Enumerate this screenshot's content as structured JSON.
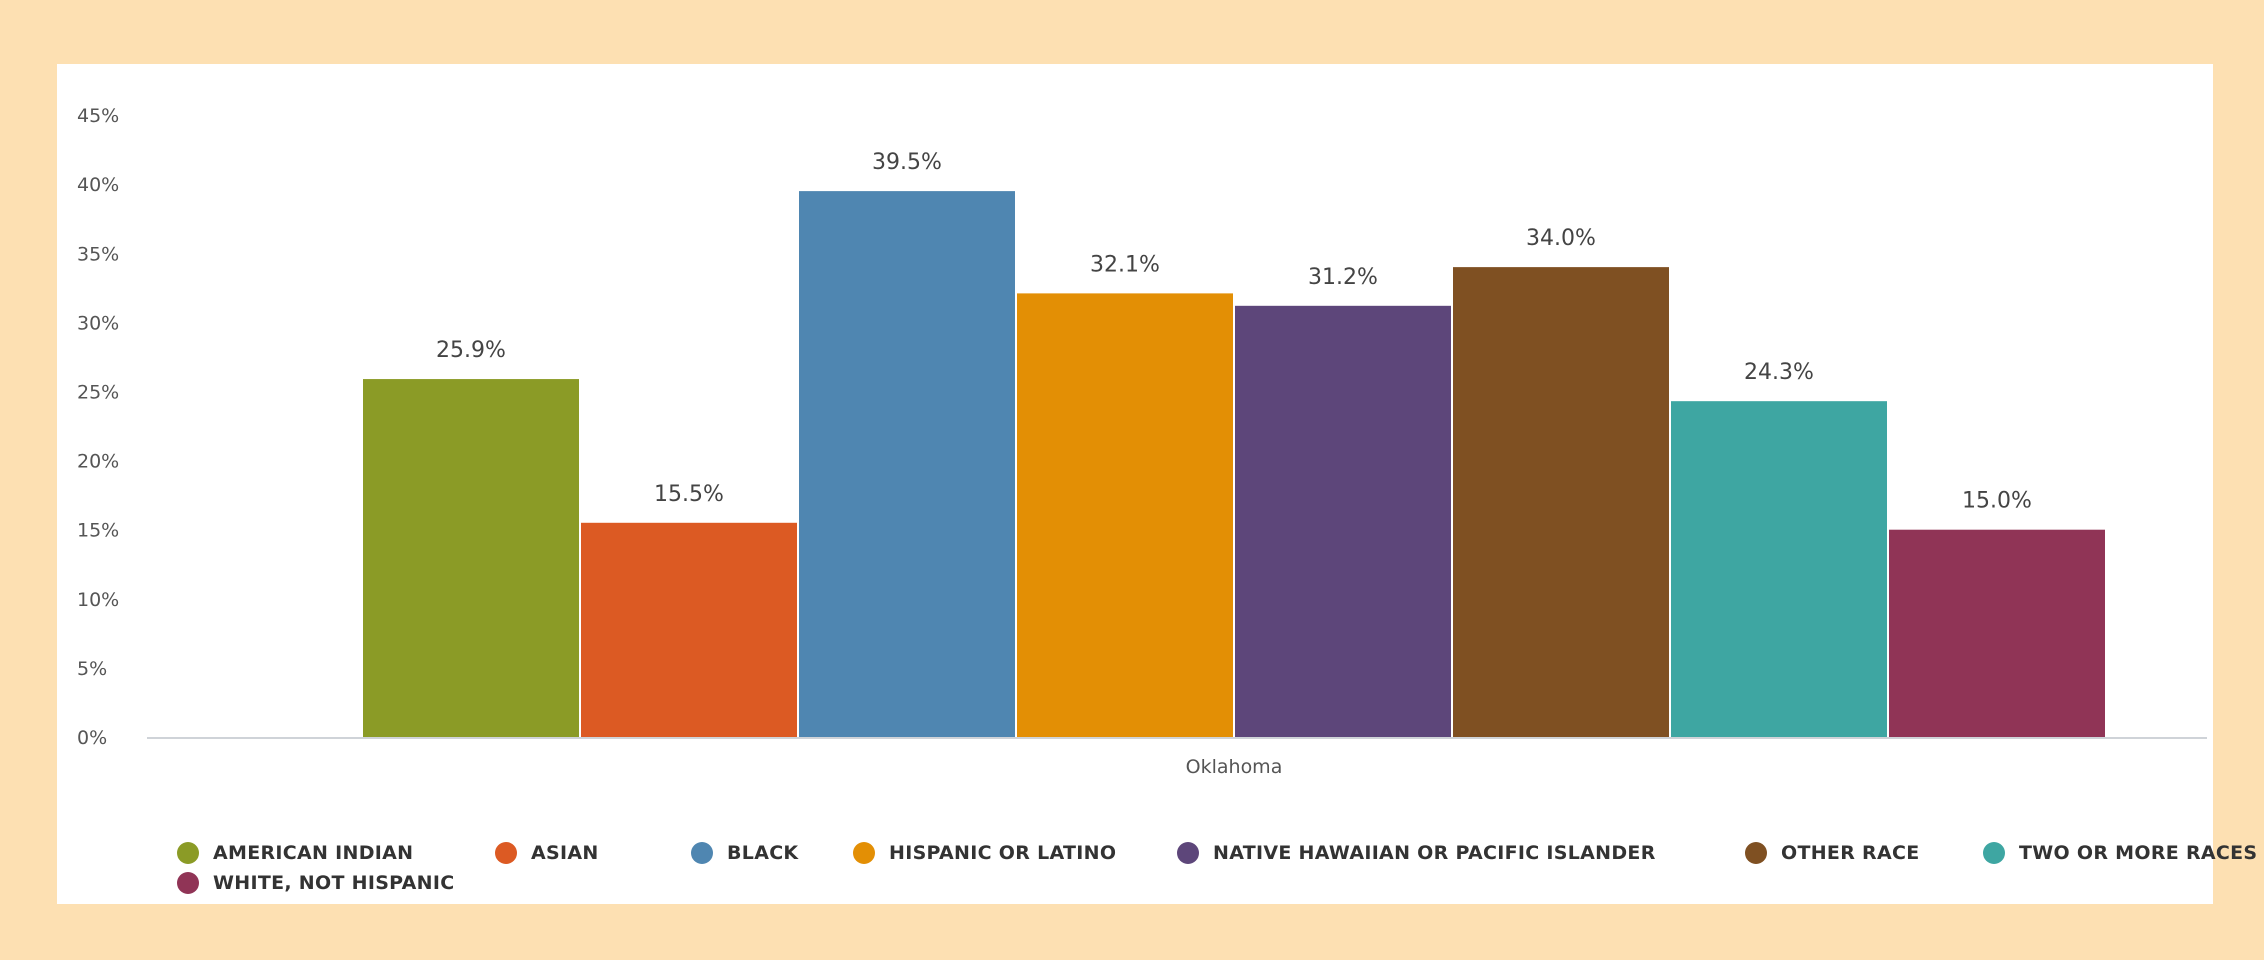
{
  "chart_data": {
    "type": "bar",
    "categories": [
      "Oklahoma"
    ],
    "series": [
      {
        "name": "AMERICAN INDIAN",
        "values": [
          25.9
        ],
        "label": "25.9%",
        "color": "#8b9b26"
      },
      {
        "name": "ASIAN",
        "values": [
          15.5
        ],
        "label": "15.5%",
        "color": "#dc5a23"
      },
      {
        "name": "BLACK",
        "values": [
          39.5
        ],
        "label": "39.5%",
        "color": "#4f86b1"
      },
      {
        "name": "HISPANIC OR LATINO",
        "values": [
          32.1
        ],
        "label": "32.1%",
        "color": "#e38f05"
      },
      {
        "name": "NATIVE HAWAIIAN OR PACIFIC ISLANDER",
        "values": [
          31.2
        ],
        "label": "31.2%",
        "color": "#5d467a"
      },
      {
        "name": "OTHER RACE",
        "values": [
          34.0
        ],
        "label": "34.0%",
        "color": "#7f5022"
      },
      {
        "name": "TWO OR MORE RACES",
        "values": [
          24.3
        ],
        "label": "24.3%",
        "color": "#3ea6a2"
      },
      {
        "name": "WHITE, NOT HISPANIC",
        "values": [
          15.0
        ],
        "label": "15.0%",
        "color": "#903456"
      }
    ],
    "yticks": [
      "0%",
      "5%",
      "10%",
      "15%",
      "20%",
      "25%",
      "30%",
      "35%",
      "40%",
      "45%"
    ],
    "ylim": [
      0,
      45
    ],
    "grid": false,
    "legend_position": "bottom",
    "background_color": "#fde0b2",
    "panel_color": "#ffffff"
  }
}
